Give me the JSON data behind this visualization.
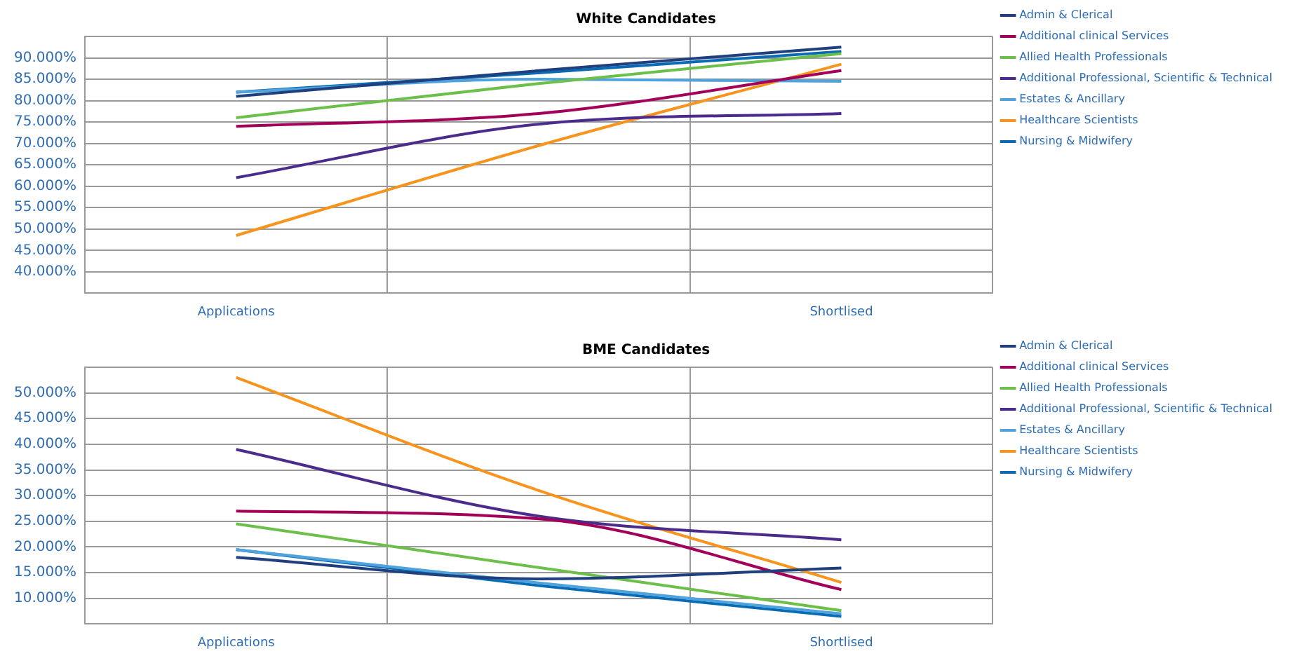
{
  "chart_data": [
    {
      "type": "line",
      "title": "White Candidates",
      "categories": [
        "Applications",
        null,
        "Shortlised"
      ],
      "ylim": [
        35,
        95
      ],
      "yticks": [
        {
          "value": 40,
          "label": "40.000%"
        },
        {
          "value": 45,
          "label": "45.000%"
        },
        {
          "value": 50,
          "label": "50.000%"
        },
        {
          "value": 55,
          "label": "55.000%"
        },
        {
          "value": 60,
          "label": "60.000%"
        },
        {
          "value": 65,
          "label": "65.000%"
        },
        {
          "value": 70,
          "label": "70.000%"
        },
        {
          "value": 75,
          "label": "75.000%"
        },
        {
          "value": 80,
          "label": "80.000%"
        },
        {
          "value": 85,
          "label": "85.000%"
        },
        {
          "value": 90,
          "label": "90.000%"
        },
        {
          "value": 95,
          "label": null
        }
      ],
      "grid": true,
      "legend": "right",
      "marker": "none",
      "series": [
        {
          "name": "Admin & Clerical",
          "color": "#1f3f7f",
          "values": [
            81,
            87,
            92.5
          ]
        },
        {
          "name": "Additional clinical Services",
          "color": "#a3005a",
          "values": [
            74,
            77,
            87
          ]
        },
        {
          "name": "Allied Health Professionals",
          "color": "#6cc04a",
          "values": [
            76,
            84,
            91
          ]
        },
        {
          "name": "Additional Professional, Scientific & Technical",
          "color": "#4b2c8c",
          "values": [
            62,
            74.5,
            77
          ]
        },
        {
          "name": "Estates & Ancillary",
          "color": "#4fa3dc",
          "values": [
            82,
            85,
            84.5
          ]
        },
        {
          "name": "Healthcare Scientists",
          "color": "#f7941d",
          "values": [
            48.5,
            69.5,
            88.5
          ]
        },
        {
          "name": "Nursing & Midwifery",
          "color": "#0a6bb5",
          "values": [
            82,
            86.5,
            91.5
          ]
        }
      ]
    },
    {
      "type": "line",
      "title": "BME Candidates",
      "categories": [
        "Applications",
        null,
        "Shortlised"
      ],
      "ylim": [
        5,
        55
      ],
      "yticks": [
        {
          "value": 10,
          "label": "10.000%"
        },
        {
          "value": 15,
          "label": "15.000%"
        },
        {
          "value": 20,
          "label": "20.000%"
        },
        {
          "value": 25,
          "label": "25.000%"
        },
        {
          "value": 30,
          "label": "30.000%"
        },
        {
          "value": 35,
          "label": "35.000%"
        },
        {
          "value": 40,
          "label": "40.000%"
        },
        {
          "value": 45,
          "label": "45.000%"
        },
        {
          "value": 50,
          "label": "50.000%"
        },
        {
          "value": 55,
          "label": null
        }
      ],
      "grid": true,
      "legend": "right",
      "marker": "none",
      "series": [
        {
          "name": "Admin & Clerical",
          "color": "#1f3f7f",
          "values": [
            18,
            13.8,
            15.9
          ]
        },
        {
          "name": "Additional clinical Services",
          "color": "#a3005a",
          "values": [
            27,
            25.5,
            11.7
          ]
        },
        {
          "name": "Allied Health Professionals",
          "color": "#6cc04a",
          "values": [
            24.5,
            16,
            7.6
          ]
        },
        {
          "name": "Additional Professional, Scientific & Technical",
          "color": "#4b2c8c",
          "values": [
            39,
            26,
            21.4
          ]
        },
        {
          "name": "Estates & Ancillary",
          "color": "#4fa3dc",
          "values": [
            19.5,
            13,
            7
          ]
        },
        {
          "name": "Healthcare Scientists",
          "color": "#f7941d",
          "values": [
            53,
            31,
            13.1
          ]
        },
        {
          "name": "Nursing & Midwifery",
          "color": "#0a6bb5",
          "values": [
            19.5,
            12.5,
            6.5
          ]
        }
      ]
    }
  ]
}
